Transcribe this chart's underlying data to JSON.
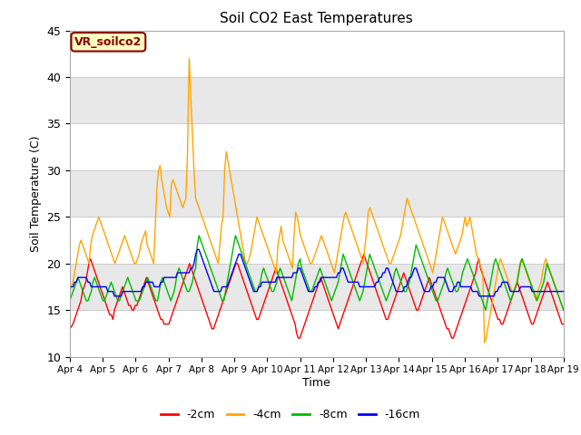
{
  "title": "Soil CO2 East Temperatures",
  "xlabel": "Time",
  "ylabel": "Soil Temperature (C)",
  "ylim": [
    10,
    45
  ],
  "annotation_text": "VR_soilco2",
  "annotation_bg": "#FFFFC0",
  "annotation_border": "#8B0000",
  "legend_labels": [
    "-2cm",
    "-4cm",
    "-8cm",
    "-16cm"
  ],
  "line_colors": [
    "#FF0000",
    "#FFA500",
    "#00BB00",
    "#0000FF"
  ],
  "xtick_labels": [
    "Apr 4",
    "Apr 5",
    "Apr 6",
    "Apr 7",
    "Apr 8",
    "Apr 9",
    "Apr 10",
    "Apr 11",
    "Apr 12",
    "Apr 13",
    "Apr 14",
    "Apr 15",
    "Apr 16",
    "Apr 17",
    "Apr 18",
    "Apr 19"
  ],
  "gray_band_ranges": [
    [
      15,
      20
    ],
    [
      25,
      30
    ],
    [
      35,
      40
    ]
  ],
  "plot_bg": "#FFFFFF",
  "fig_bg": "#FFFFFF",
  "n_points": 360,
  "data_2cm": [
    13,
    13.2,
    13.5,
    14,
    14.5,
    15,
    15.5,
    16,
    17,
    17.5,
    18,
    19,
    20,
    20.5,
    20,
    19.5,
    19,
    18.5,
    18,
    17.5,
    17,
    16.5,
    16,
    15.5,
    15,
    14.5,
    14.5,
    14,
    15,
    15.5,
    16,
    16.5,
    17,
    17.5,
    17,
    16.5,
    16,
    15.5,
    15.5,
    15,
    15,
    15.5,
    15.5,
    16,
    16.5,
    17,
    17.5,
    18,
    18.5,
    18,
    17.5,
    17,
    16.5,
    16,
    15.5,
    15,
    14.5,
    14,
    14,
    13.5,
    13.5,
    13.5,
    13.5,
    14,
    14.5,
    15,
    15.5,
    16,
    16.5,
    17,
    17.5,
    18,
    18.5,
    19,
    19.5,
    20,
    19.5,
    19,
    18.5,
    18,
    17.5,
    17,
    16.5,
    16,
    15.5,
    15,
    14.5,
    14,
    13.5,
    13,
    13,
    13.5,
    14,
    14.5,
    15,
    15.5,
    16,
    16.5,
    17,
    17.5,
    18,
    18.5,
    19,
    19.5,
    20,
    20,
    19.5,
    19,
    18.5,
    18,
    17.5,
    17,
    16.5,
    16,
    15.5,
    15,
    14.5,
    14,
    14,
    14.5,
    15,
    15.5,
    16,
    16.5,
    17,
    17.5,
    18,
    18.5,
    19,
    19.5,
    19,
    18.5,
    18,
    17.5,
    17,
    16.5,
    16,
    15.5,
    15,
    14.5,
    14,
    13.5,
    12.5,
    12,
    12,
    12.5,
    13,
    13.5,
    14,
    14.5,
    15,
    15.5,
    16,
    16.5,
    17,
    17.5,
    18,
    18.5,
    18,
    17.5,
    17,
    16.5,
    16,
    15.5,
    15,
    14.5,
    14,
    13.5,
    13,
    13.5,
    14,
    14.5,
    15,
    15.5,
    16,
    16.5,
    17,
    17.5,
    18,
    18.5,
    19,
    19.5,
    20,
    20.5,
    21,
    20.5,
    20,
    19.5,
    19,
    18.5,
    18,
    17.5,
    17,
    16.5,
    16,
    15.5,
    15,
    14.5,
    14,
    14,
    14.5,
    15,
    15.5,
    16,
    16.5,
    17,
    17.5,
    18,
    18.5,
    19,
    18.5,
    18,
    17.5,
    17,
    16.5,
    16,
    15.5,
    15,
    15,
    15.5,
    16,
    16.5,
    17,
    17.5,
    18,
    18.5,
    18,
    17.5,
    17,
    16.5,
    16,
    15.5,
    15,
    14.5,
    14,
    13.5,
    13,
    13,
    12.5,
    12,
    12,
    12.5,
    13,
    13.5,
    14,
    14.5,
    15,
    15.5,
    16,
    16.5,
    17,
    17.5,
    18,
    18.5,
    19,
    20,
    20.5,
    19.5,
    19,
    18.5,
    18,
    17.5,
    17,
    16.5,
    16,
    15.5,
    15,
    14.5,
    14,
    14,
    13.5,
    13.5,
    14,
    14.5,
    15,
    15.5,
    16,
    16.5,
    17,
    17.5,
    18,
    17.5,
    17,
    16.5,
    16,
    15.5,
    15,
    14.5,
    14,
    13.5,
    13.5,
    14,
    14.5,
    15,
    15.5,
    16,
    16.5,
    17,
    17.5,
    18,
    17.5,
    17,
    16.5,
    16,
    15.5,
    15,
    14.5,
    14,
    13.5,
    13.5
  ],
  "data_4cm": [
    17,
    17.5,
    18,
    19,
    20,
    21,
    22,
    22.5,
    22,
    21.5,
    21,
    20.5,
    20,
    22,
    23,
    23.5,
    24,
    24.5,
    25,
    24.5,
    24,
    23.5,
    23,
    22.5,
    22,
    21.5,
    21,
    20.5,
    20,
    20.5,
    21,
    21.5,
    22,
    22.5,
    23,
    22.5,
    22,
    21.5,
    21,
    20.5,
    20,
    20,
    20.5,
    21,
    22,
    22.5,
    23,
    23.5,
    22,
    21.5,
    21,
    20.5,
    20,
    24,
    28,
    30,
    30.5,
    29,
    28,
    27,
    26,
    25.5,
    25,
    28.5,
    29,
    28.5,
    28,
    27.5,
    27,
    26.5,
    26,
    26.5,
    27,
    32,
    42,
    38,
    34,
    30,
    27,
    26.5,
    26,
    25.5,
    25,
    24.5,
    24,
    23.5,
    23,
    22.5,
    22,
    21.5,
    21,
    20.5,
    20,
    22,
    24,
    25,
    30,
    32,
    31,
    30,
    29,
    28,
    27,
    26,
    25,
    24,
    23,
    22,
    21,
    20,
    20,
    20.5,
    21,
    22,
    23,
    24,
    25,
    24.5,
    24,
    23.5,
    23,
    22.5,
    22,
    21.5,
    21,
    20.5,
    20,
    19.5,
    19,
    22,
    23,
    24,
    22.5,
    22,
    21.5,
    21,
    20.5,
    20,
    19.5,
    23,
    25.5,
    25,
    24,
    23,
    22.5,
    22,
    21.5,
    21,
    20.5,
    20,
    20,
    20.5,
    21,
    21.5,
    22,
    22.5,
    23,
    22.5,
    22,
    21.5,
    21,
    20.5,
    20,
    19.5,
    19,
    20,
    21,
    22,
    23,
    24,
    25,
    25.5,
    25,
    24.5,
    24,
    23.5,
    23,
    22.5,
    22,
    21.5,
    21,
    20.5,
    20,
    22,
    23.5,
    25.5,
    26,
    25.5,
    25,
    24.5,
    24,
    23.5,
    23,
    22.5,
    22,
    21.5,
    21,
    20.5,
    20,
    20,
    20.5,
    21,
    21.5,
    22,
    22.5,
    23,
    24,
    25,
    26,
    27,
    26.5,
    26,
    25.5,
    25,
    24.5,
    24,
    23.5,
    23,
    22.5,
    22,
    21.5,
    21,
    20.5,
    20,
    19.5,
    19,
    20,
    21,
    22,
    23,
    24,
    25,
    24.5,
    24,
    23.5,
    23,
    22.5,
    22,
    21.5,
    21,
    21.5,
    22,
    22.5,
    23,
    24,
    25,
    24,
    24.5,
    25,
    24,
    23,
    22,
    21,
    20.5,
    20,
    19.5,
    19,
    11.5,
    12,
    13,
    14,
    15,
    16,
    17,
    18,
    19,
    20,
    20.5,
    20,
    19.5,
    19,
    18.5,
    18,
    17.5,
    17,
    17,
    17.5,
    18,
    19,
    20,
    20.5,
    20,
    19.5,
    19,
    18.5,
    18,
    17.5,
    17,
    16.5,
    16,
    17,
    17.5,
    18,
    19,
    20,
    20.5,
    20,
    19.5,
    19,
    18.5,
    18,
    17.5,
    17,
    16.5,
    16,
    15.5,
    15
  ],
  "data_8cm": [
    16,
    16.5,
    17,
    17.5,
    18,
    18.5,
    18,
    17.5,
    17,
    16.5,
    16,
    16,
    16.5,
    17,
    18,
    18.5,
    18,
    17.5,
    17,
    16.5,
    16,
    16,
    16.5,
    17,
    17.5,
    18,
    17.5,
    17,
    16.5,
    16,
    16,
    16.5,
    17,
    17.5,
    18,
    18.5,
    18,
    17.5,
    17,
    16.5,
    16,
    16,
    16,
    16.5,
    17,
    17.5,
    18,
    18.5,
    18,
    17.5,
    17,
    16.5,
    16,
    16,
    17,
    18,
    18.5,
    18,
    17.5,
    17,
    16.5,
    16,
    16.5,
    17,
    18,
    19,
    19.5,
    19,
    18.5,
    18,
    17.5,
    17,
    17,
    17.5,
    18,
    19,
    19.5,
    22,
    23,
    22.5,
    22,
    21.5,
    21,
    20.5,
    20,
    19.5,
    19,
    18.5,
    18,
    17.5,
    17,
    16.5,
    16,
    16,
    17,
    18,
    19,
    20,
    21,
    22,
    23,
    22.5,
    22,
    21.5,
    21,
    20.5,
    20,
    19.5,
    19,
    18.5,
    18,
    17.5,
    17,
    17,
    17.5,
    18,
    19,
    19.5,
    19,
    18.5,
    18,
    17.5,
    17,
    17,
    17.5,
    18,
    19,
    19.5,
    19,
    18.5,
    18,
    17.5,
    17,
    16.5,
    16,
    17,
    18,
    19,
    20,
    20.5,
    19.5,
    19,
    18.5,
    18,
    17.5,
    17,
    17,
    17.5,
    18,
    18.5,
    19,
    19.5,
    19,
    18.5,
    18,
    17.5,
    17,
    16.5,
    16,
    16.5,
    17,
    17.5,
    18,
    19,
    20,
    21,
    20.5,
    20,
    19.5,
    19,
    18.5,
    18,
    17.5,
    17,
    16.5,
    16,
    16.5,
    17,
    18,
    19,
    20,
    21,
    20.5,
    20,
    19.5,
    19,
    18.5,
    18,
    17.5,
    17,
    16.5,
    16,
    16.5,
    17,
    17.5,
    18,
    19,
    19.5,
    19,
    18.5,
    18,
    17.5,
    17,
    17,
    17.5,
    18,
    19,
    20,
    21,
    22,
    21.5,
    21,
    20.5,
    20,
    19.5,
    19,
    18.5,
    18,
    17.5,
    17,
    16.5,
    16,
    16,
    16.5,
    17,
    17.5,
    18,
    19,
    19.5,
    19,
    18.5,
    18,
    17.5,
    17,
    17,
    17.5,
    18,
    19,
    19.5,
    20,
    20.5,
    20,
    19.5,
    19,
    18.5,
    18,
    17.5,
    17,
    16.5,
    16,
    15.5,
    15,
    16,
    17,
    18,
    19,
    20,
    20.5,
    20,
    19.5,
    19,
    18.5,
    18,
    17.5,
    17,
    16.5,
    16,
    16.5,
    17,
    17.5,
    18,
    19,
    20,
    20.5,
    20,
    19.5,
    19,
    18.5,
    18,
    17.5,
    17,
    16.5,
    16,
    16.5,
    17,
    17.5,
    18,
    19,
    20,
    19.5,
    19,
    18.5,
    18,
    17.5,
    17,
    16.5,
    16,
    15.5,
    15
  ],
  "data_16cm": [
    17.5,
    17.5,
    17.5,
    18,
    18,
    18.5,
    18.5,
    18.5,
    18.5,
    18.5,
    18.5,
    18,
    18,
    17.5,
    17.5,
    17.5,
    17.5,
    17.5,
    17.5,
    17.5,
    17.5,
    17.5,
    17.5,
    17,
    17,
    17,
    17,
    16.5,
    16.5,
    16.5,
    16.5,
    16.5,
    17,
    17,
    17,
    17,
    17,
    17,
    17,
    17,
    17,
    17,
    17,
    17,
    17.5,
    17.5,
    18,
    18,
    18,
    18,
    18,
    17.5,
    17.5,
    17.5,
    17.5,
    18,
    18,
    18.5,
    18.5,
    18.5,
    18.5,
    18.5,
    18.5,
    18.5,
    18.5,
    19,
    19,
    19,
    19,
    19,
    19,
    19,
    19,
    19.5,
    19.5,
    20,
    21,
    21.5,
    21.5,
    21,
    20.5,
    20,
    19.5,
    19,
    18.5,
    18,
    17.5,
    17,
    17,
    17,
    17,
    17,
    17.5,
    17.5,
    17.5,
    17.5,
    18,
    18.5,
    19,
    19.5,
    20,
    20.5,
    21,
    21,
    20.5,
    20,
    19.5,
    19,
    18.5,
    18,
    17.5,
    17,
    17,
    17,
    17.5,
    17.5,
    18,
    18,
    18,
    18,
    18,
    18,
    18,
    18,
    18,
    18.5,
    18.5,
    18.5,
    18.5,
    18.5,
    18.5,
    18.5,
    18.5,
    18.5,
    18.5,
    19,
    19,
    19,
    19.5,
    19.5,
    19,
    18.5,
    18,
    17.5,
    17,
    17,
    17,
    17,
    17.5,
    17.5,
    18,
    18,
    18.5,
    18.5,
    18.5,
    18.5,
    18.5,
    18.5,
    18.5,
    18.5,
    18.5,
    18.5,
    19,
    19,
    19.5,
    19.5,
    19,
    18.5,
    18,
    18,
    18,
    18,
    18,
    18,
    18,
    17.5,
    17.5,
    17.5,
    17.5,
    17.5,
    17.5,
    17.5,
    17.5,
    17.5,
    17.5,
    18,
    18,
    18.5,
    18.5,
    19,
    19,
    19.5,
    19.5,
    19,
    18.5,
    18,
    17.5,
    17,
    17,
    17,
    17,
    17,
    17.5,
    17.5,
    18,
    18.5,
    18.5,
    19,
    19.5,
    19.5,
    19,
    18.5,
    18,
    17.5,
    17,
    17,
    17,
    17,
    17.5,
    17.5,
    18,
    18,
    18.5,
    18.5,
    18.5,
    18.5,
    18.5,
    18,
    17.5,
    17,
    17,
    17,
    17.5,
    17.5,
    18,
    18,
    17.5,
    17.5,
    17.5,
    17.5,
    17.5,
    17.5,
    17.5,
    17,
    17,
    17,
    17,
    16.5,
    16.5,
    16.5,
    16.5,
    16.5,
    16.5,
    16.5,
    16.5,
    16.5,
    16.5,
    17,
    17,
    17.5,
    17.5,
    18,
    18,
    18,
    18,
    17.5,
    17,
    17,
    17,
    17,
    17,
    17,
    17.5,
    17.5,
    17.5,
    17.5,
    17.5,
    17.5,
    17.5,
    17,
    17,
    17,
    17,
    17,
    17,
    17,
    17,
    17,
    17,
    17,
    17,
    17,
    17,
    17,
    17,
    17,
    17,
    17,
    17
  ]
}
